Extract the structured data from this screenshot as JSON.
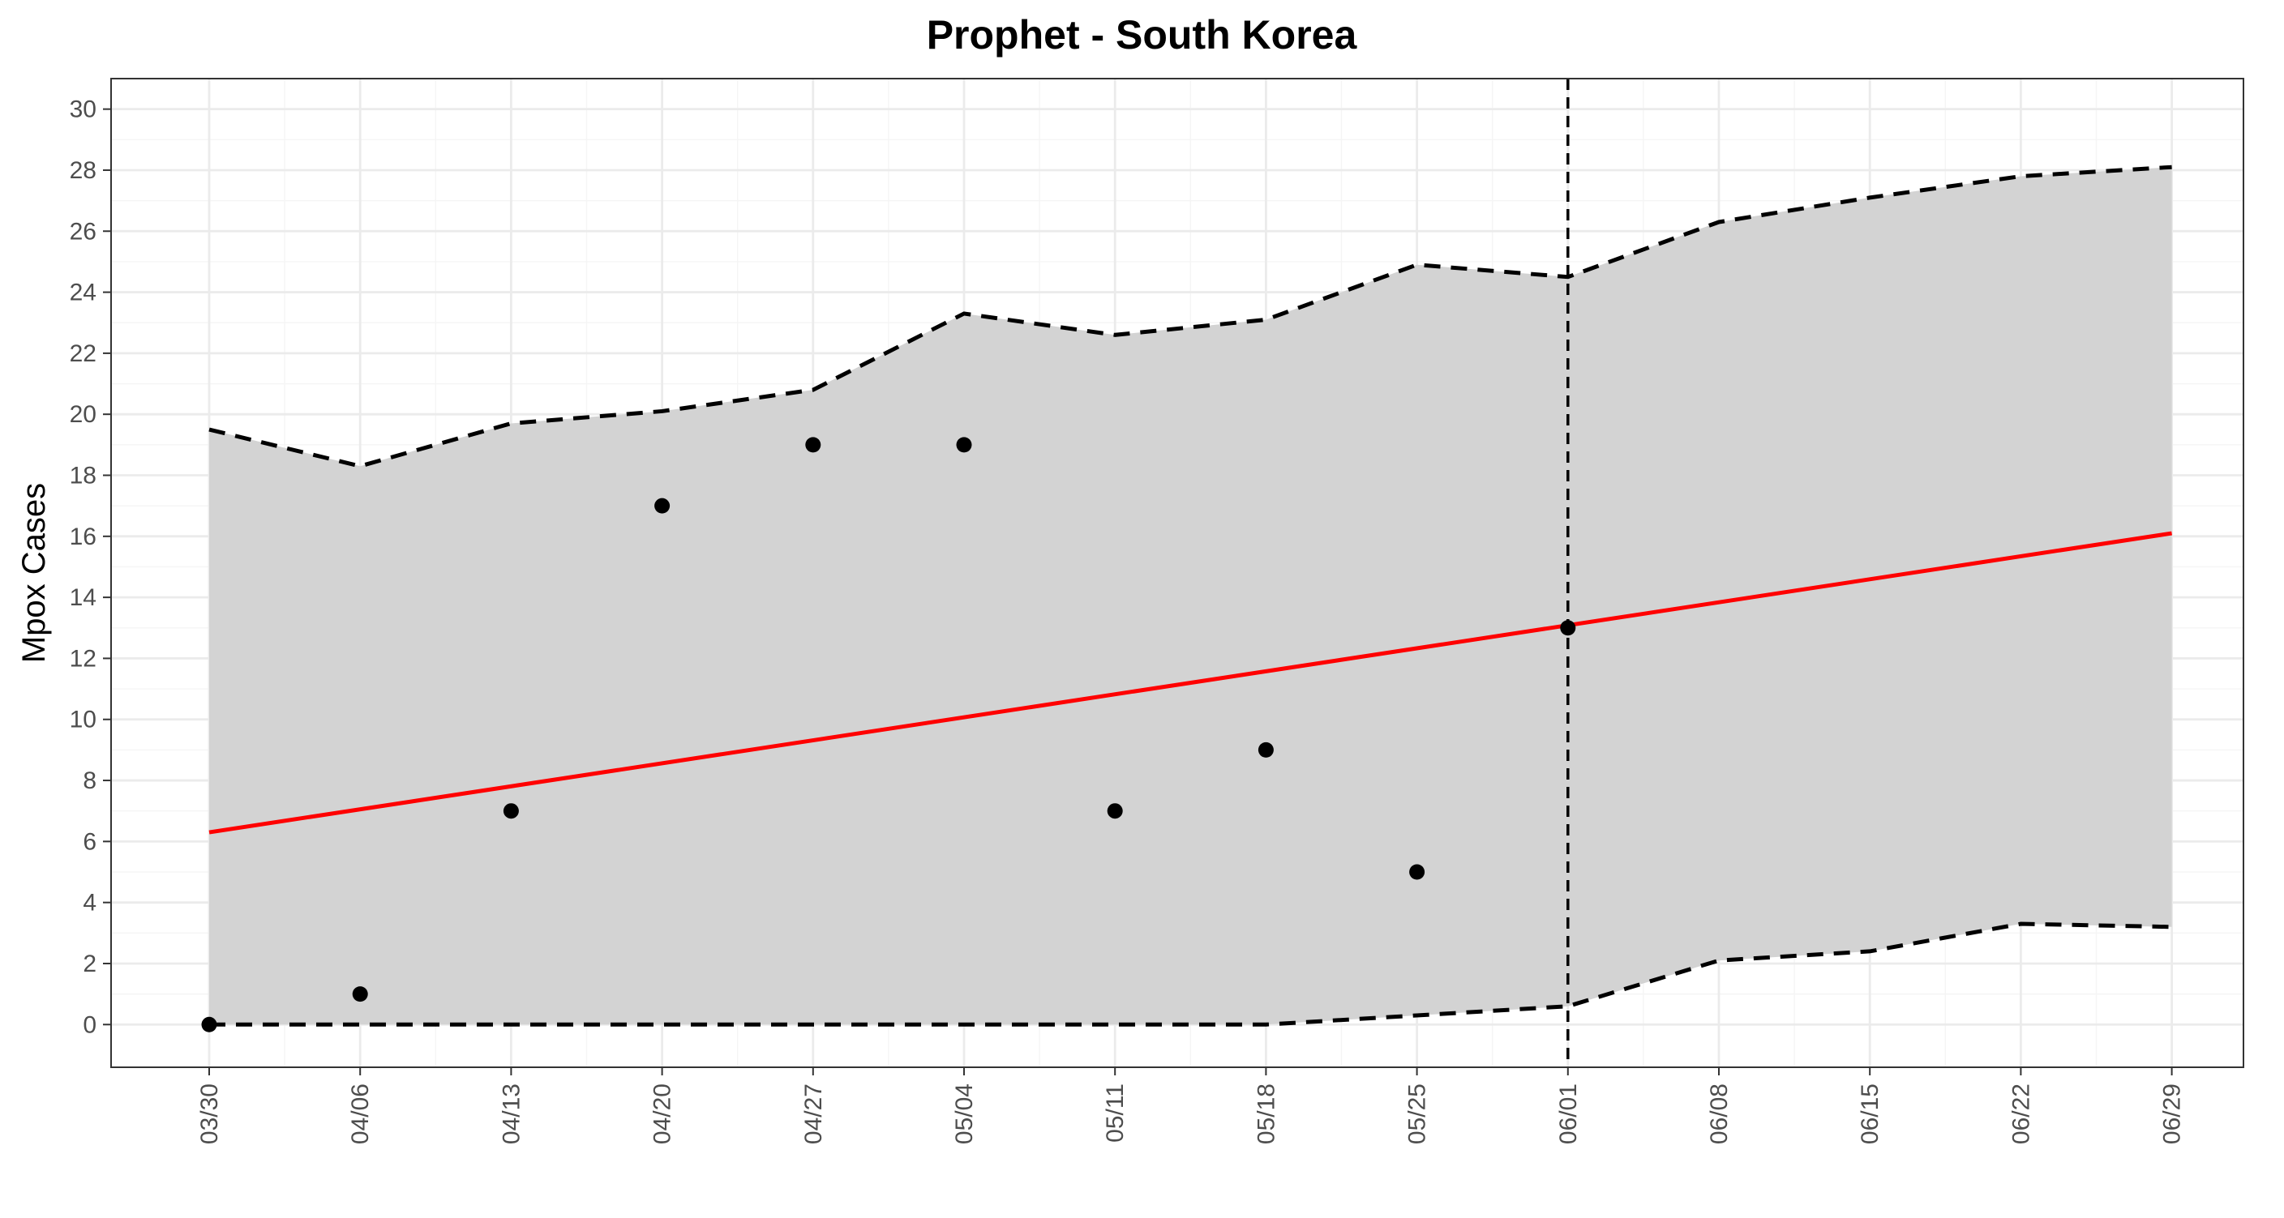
{
  "chart_data": {
    "type": "line",
    "title": "Prophet - South Korea",
    "xlabel": "",
    "ylabel": "Mpox Cases",
    "x_ticks": [
      "03/30",
      "04/06",
      "04/13",
      "04/20",
      "04/27",
      "05/04",
      "05/11",
      "05/18",
      "05/25",
      "06/01",
      "06/08",
      "06/15",
      "06/22",
      "06/29"
    ],
    "y_ticks": [
      0,
      2,
      4,
      6,
      8,
      10,
      12,
      14,
      16,
      18,
      20,
      22,
      24,
      26,
      28,
      30
    ],
    "ylim": [
      -1.4,
      31
    ],
    "grid": true,
    "legend": "none",
    "forecast_start": "06/01",
    "observed": {
      "x": [
        "03/30",
        "04/06",
        "04/13",
        "04/20",
        "04/27",
        "05/04",
        "05/11",
        "05/18",
        "05/25",
        "06/01"
      ],
      "y": [
        0,
        1,
        7,
        17,
        19,
        19,
        7,
        9,
        5,
        13
      ]
    },
    "fitted": {
      "x": [
        "03/30",
        "06/29"
      ],
      "y": [
        6.3,
        16.1
      ]
    },
    "upper": {
      "x": [
        "03/30",
        "04/06",
        "04/13",
        "04/20",
        "04/27",
        "05/04",
        "05/11",
        "05/18",
        "05/25",
        "06/01",
        "06/08",
        "06/15",
        "06/22",
        "06/29"
      ],
      "y": [
        19.5,
        18.3,
        19.7,
        20.1,
        20.8,
        23.3,
        22.6,
        23.1,
        24.9,
        24.5,
        26.3,
        27.1,
        27.8,
        28.1
      ]
    },
    "lower": {
      "x": [
        "03/30",
        "04/06",
        "04/13",
        "04/20",
        "04/27",
        "05/04",
        "05/11",
        "05/18",
        "05/25",
        "06/01",
        "06/08",
        "06/15",
        "06/22",
        "06/29"
      ],
      "y": [
        0,
        0,
        0,
        0,
        0,
        0,
        0,
        0,
        0.3,
        0.6,
        2.1,
        2.4,
        3.3,
        3.2
      ]
    },
    "colors": {
      "band": "#d3d3d3",
      "fit_line": "#ff0000",
      "points": "#000000",
      "bounds": "#000000",
      "grid_major": "#ebebeb",
      "grid_minor": "#f5f5f5",
      "tick_text": "#4d4d4d"
    }
  }
}
